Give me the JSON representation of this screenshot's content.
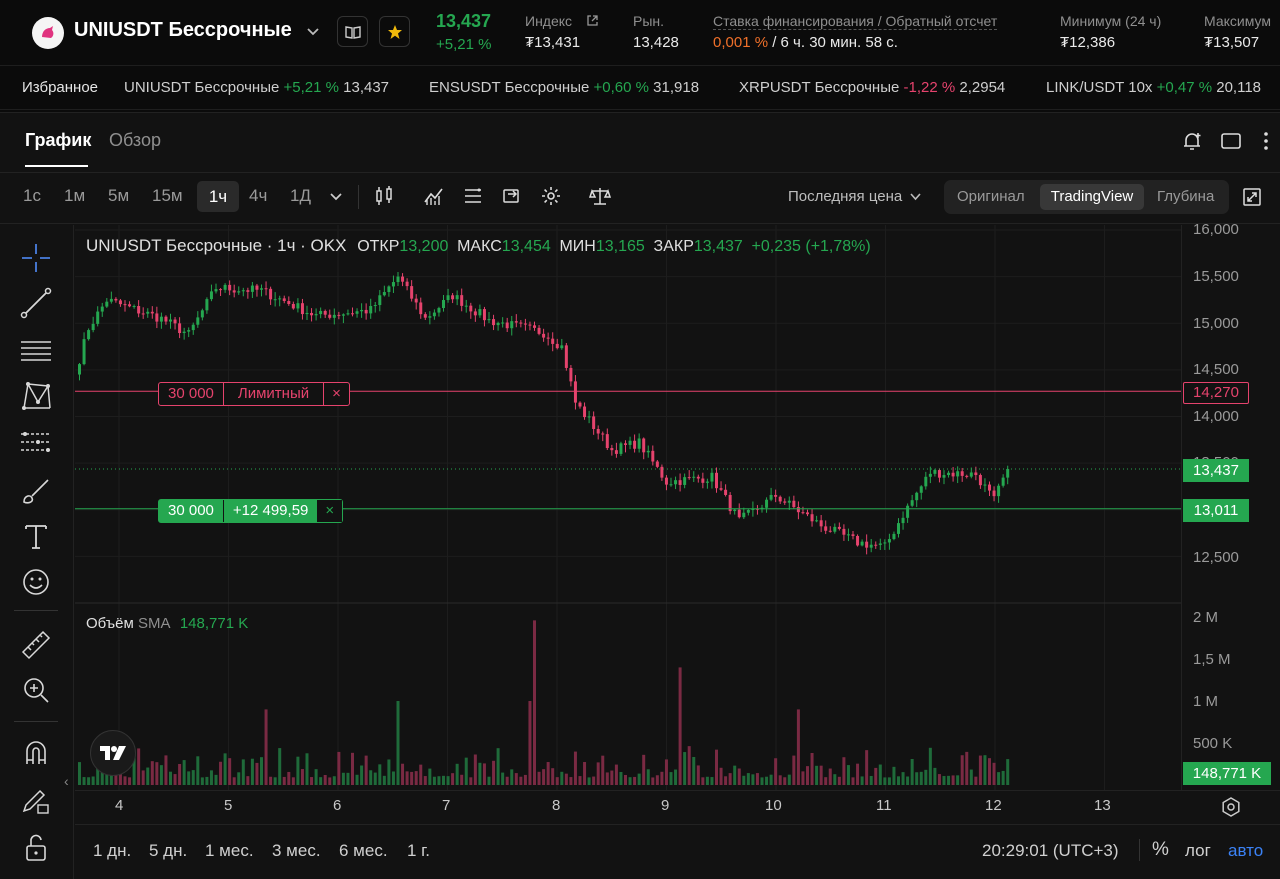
{
  "header": {
    "symbol": "UNIUSDT Бессрочные",
    "last_price": "13,437",
    "change": "+5,21 %",
    "index_label": "Индекс",
    "index_value": "₮13,431",
    "market_label": "Рын.",
    "market_value": "13,428",
    "funding_label": "Ставка финансирования / Обратный отсчет",
    "funding_rate": "0,001 %",
    "funding_countdown": " / 6 ч. 30 мин. 58 с.",
    "low_label": "Минимум (24 ч)",
    "low_value": "₮12,386",
    "high_label": "Максимум",
    "high_value": "₮13,507"
  },
  "favorites": {
    "label": "Избранное",
    "items": [
      {
        "name": "UNIUSDT Бессрочные",
        "change": "+5,21 %",
        "price": "13,437",
        "up": true
      },
      {
        "name": "ENSUSDT Бессрочные",
        "change": "+0,60 %",
        "price": "31,918",
        "up": true
      },
      {
        "name": "XRPUSDT Бессрочные",
        "change": "-1,22 %",
        "price": "2,2954",
        "up": false
      },
      {
        "name": "LINK/USDT 10x",
        "change": "+0,47 %",
        "price": "20,118",
        "up": true
      }
    ]
  },
  "tabs": {
    "chart": "График",
    "overview": "Обзор"
  },
  "timeframes": [
    "1с",
    "1м",
    "5м",
    "15м",
    "1ч",
    "4ч",
    "1Д"
  ],
  "active_timeframe": "1ч",
  "toolbar": {
    "price_type": "Последняя цена",
    "views": [
      "Оригинал",
      "TradingView",
      "Глубина"
    ],
    "active_view": "TradingView"
  },
  "legend": {
    "title": "UNIUSDT Бессрочные · 1ч · OKX",
    "open_label": "ОТКР",
    "open": "13,200",
    "high_label": "МАКС",
    "high": "13,454",
    "low_label": "МИН",
    "low": "13,165",
    "close_label": "ЗАКР",
    "close": "13,437",
    "change": "+0,235 (+1,78%)"
  },
  "orders": {
    "limit": {
      "qty": "30 000",
      "label": "Лимитный",
      "price": "14,270",
      "close": "×"
    },
    "position": {
      "qty": "30 000",
      "pnl": "+12 499,59",
      "price": "13,011",
      "close": "×"
    }
  },
  "current_price_tag": "13,437",
  "volume": {
    "label": "Объём",
    "sma_label": "SMA",
    "sma_value": "148,771 K",
    "tag": "148,771 K"
  },
  "price_axis": [
    "16,000",
    "15,500",
    "15,000",
    "14,500",
    "14,000",
    "13,500",
    "12,500"
  ],
  "volume_axis": [
    "2 M",
    "1,5 M",
    "1 M",
    "500 K"
  ],
  "time_axis": [
    "4",
    "5",
    "6",
    "7",
    "8",
    "9",
    "10",
    "11",
    "12",
    "13"
  ],
  "ranges": [
    "1 дн.",
    "5 дн.",
    "1 мес.",
    "3 мес.",
    "6 мес.",
    "1 г."
  ],
  "clock": "20:29:01 (UTC+3)",
  "scale_buttons": {
    "percent": "%",
    "log": "лог",
    "auto": "авто"
  },
  "colors": {
    "up": "#25a750",
    "down": "#e5436d",
    "funding": "#f0702a",
    "accent_view": "#2a2a2a"
  },
  "chart_data": {
    "type": "candlestick",
    "interval": "1ч",
    "ylim": [
      12300,
      16000
    ],
    "volume_ylim": [
      0,
      2000000
    ],
    "price_lines": [
      {
        "label": "Лимитный",
        "value": 14270
      },
      {
        "label": "position",
        "value": 13011
      },
      {
        "label": "last",
        "value": 13437
      }
    ],
    "segments": [
      {
        "hours": 3,
        "from": 14450,
        "to": 14950
      },
      {
        "hours": 4,
        "from": 14950,
        "to": 15250
      },
      {
        "hours": 12,
        "from": 15250,
        "to": 15050
      },
      {
        "hours": 6,
        "from": 15050,
        "to": 14880
      },
      {
        "hours": 6,
        "from": 14880,
        "to": 15380
      },
      {
        "hours": 10,
        "from": 15380,
        "to": 15350
      },
      {
        "hours": 12,
        "from": 15350,
        "to": 15080
      },
      {
        "hours": 12,
        "from": 15080,
        "to": 15140
      },
      {
        "hours": 6,
        "from": 15140,
        "to": 15500
      },
      {
        "hours": 6,
        "from": 15500,
        "to": 15050
      },
      {
        "hours": 6,
        "from": 15050,
        "to": 15300
      },
      {
        "hours": 8,
        "from": 15300,
        "to": 15030
      },
      {
        "hours": 12,
        "from": 15030,
        "to": 14900
      },
      {
        "hours": 4,
        "from": 14900,
        "to": 14750
      },
      {
        "hours": 3,
        "from": 14750,
        "to": 14150
      },
      {
        "hours": 8,
        "from": 14150,
        "to": 13640
      },
      {
        "hours": 6,
        "from": 13640,
        "to": 13720
      },
      {
        "hours": 6,
        "from": 13720,
        "to": 13300
      },
      {
        "hours": 10,
        "from": 13300,
        "to": 13350
      },
      {
        "hours": 6,
        "from": 13350,
        "to": 12880
      },
      {
        "hours": 8,
        "from": 12880,
        "to": 13150
      },
      {
        "hours": 10,
        "from": 13150,
        "to": 12830
      },
      {
        "hours": 8,
        "from": 12830,
        "to": 12650
      },
      {
        "hours": 6,
        "from": 12650,
        "to": 12600
      },
      {
        "hours": 4,
        "from": 12600,
        "to": 12950
      },
      {
        "hours": 6,
        "from": 12950,
        "to": 13400
      },
      {
        "hours": 10,
        "from": 13400,
        "to": 13380
      },
      {
        "hours": 4,
        "from": 13380,
        "to": 13100
      },
      {
        "hours": 3,
        "from": 13100,
        "to": 13437
      }
    ],
    "volume_spikes": [
      {
        "hour": 100,
        "value": 1960000
      },
      {
        "hour": 99,
        "value": 1000000
      },
      {
        "hour": 132,
        "value": 1400000
      },
      {
        "hour": 158,
        "value": 900000
      },
      {
        "hour": 70,
        "value": 1000000
      },
      {
        "hour": 41,
        "value": 900000
      }
    ]
  }
}
